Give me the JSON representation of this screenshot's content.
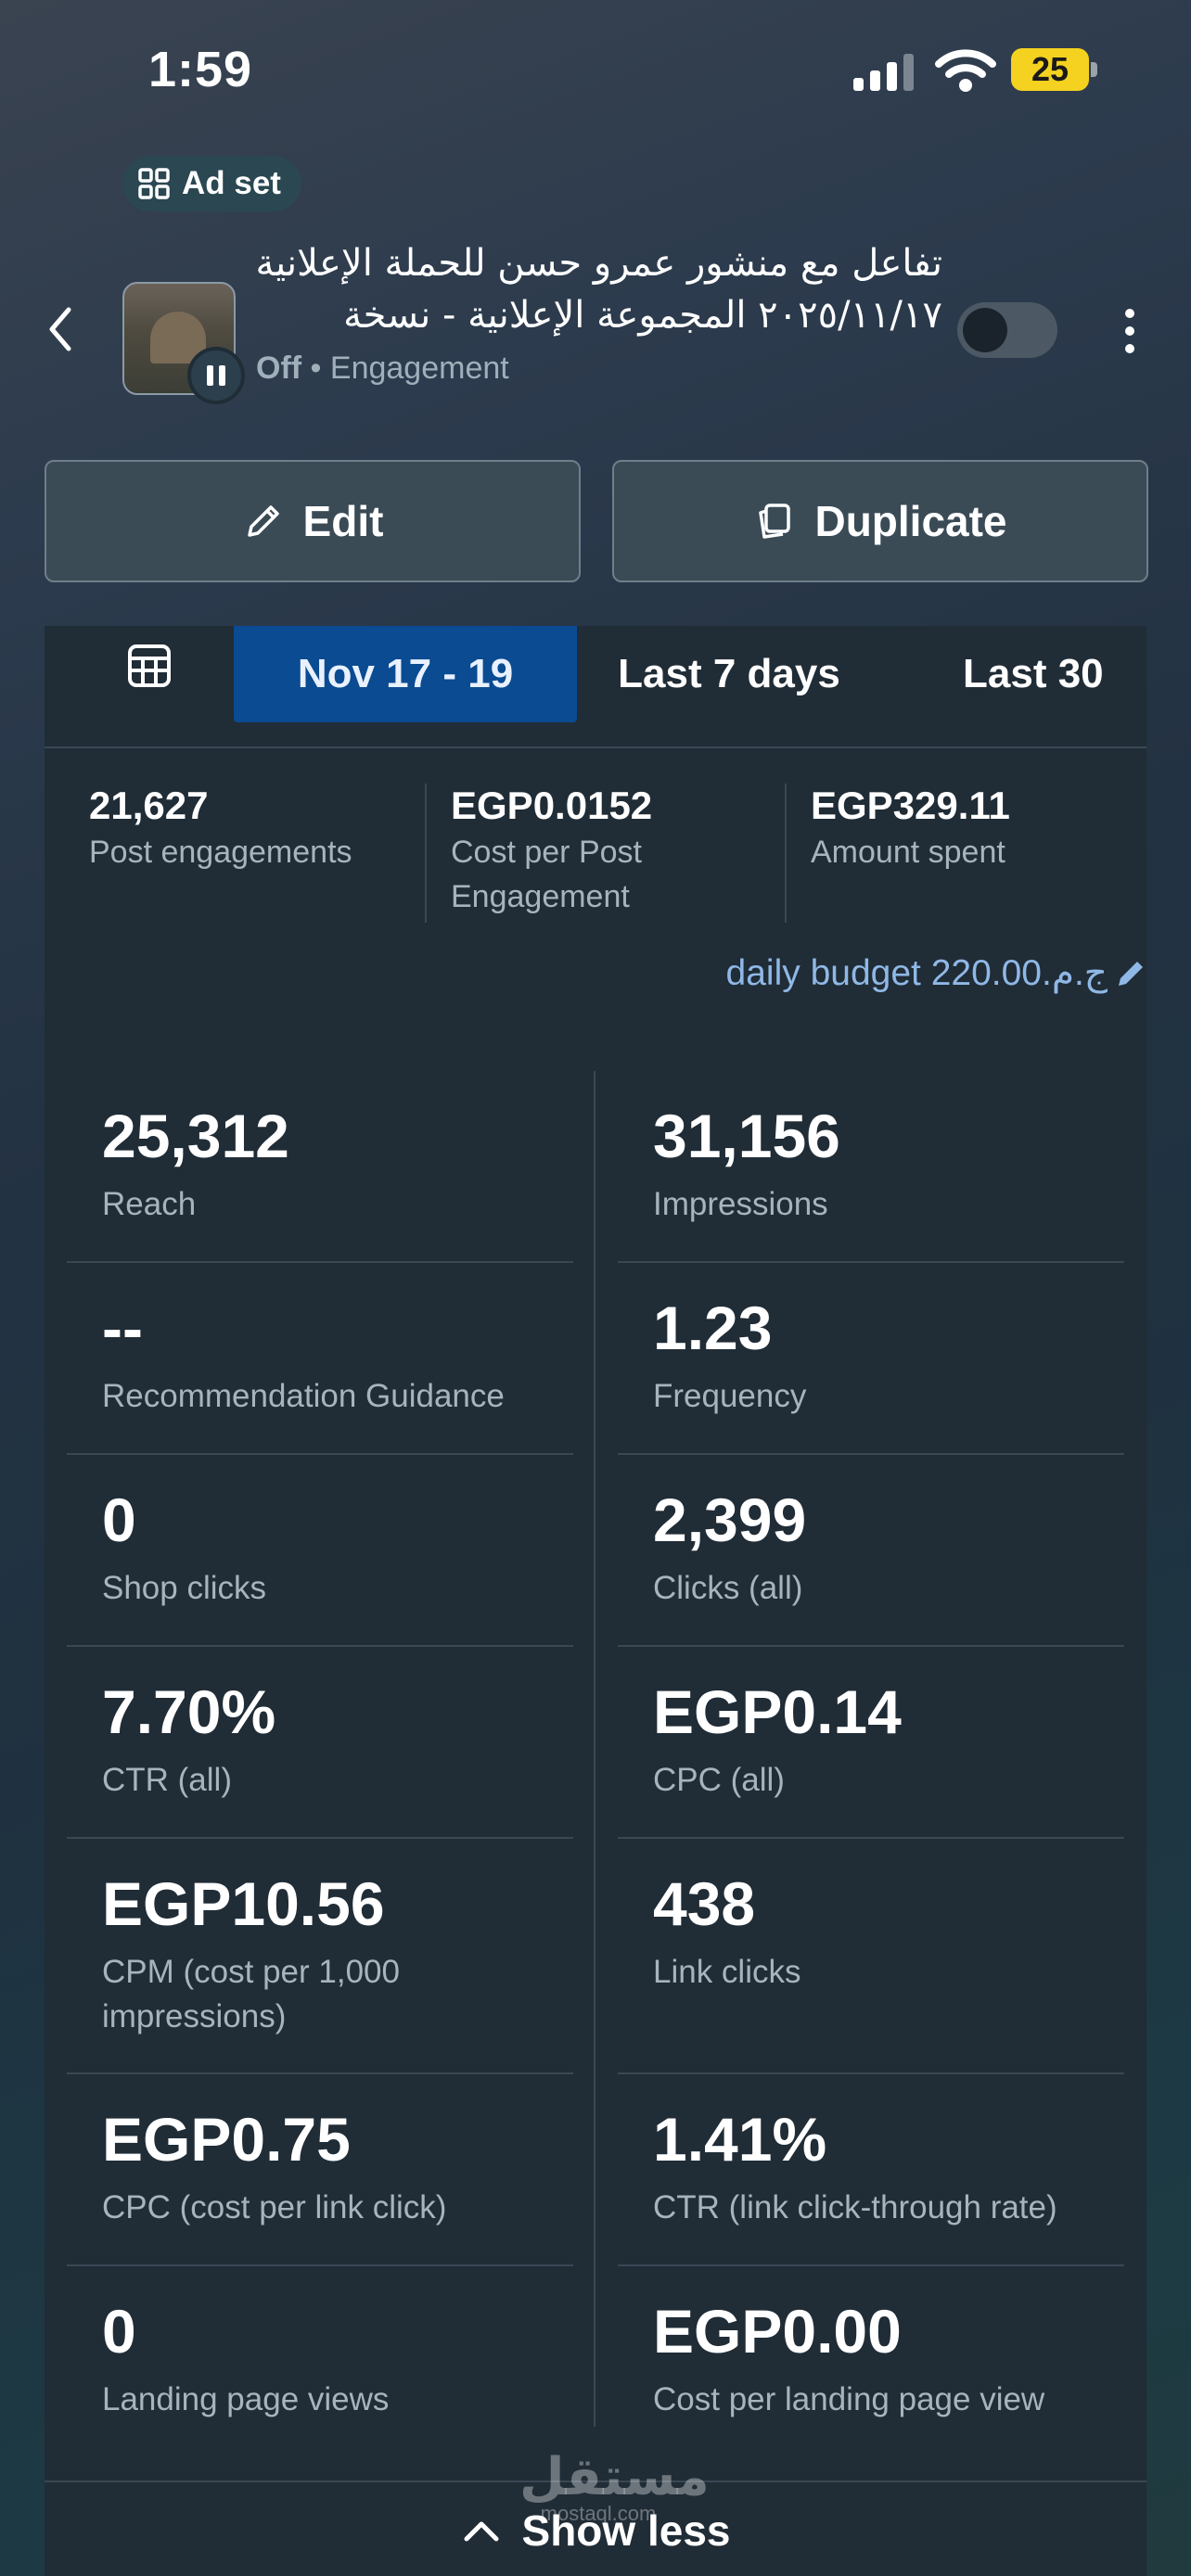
{
  "status_bar": {
    "time": "1:59",
    "battery": "25",
    "battery_color": "#f4d21f"
  },
  "header": {
    "badge_label": "Ad set",
    "title_line1": "تفاعل مع منشور  عمرو حسن للحملة الإعلانية",
    "title_line2": "٢٠٢٥/١١/١٧ المجموعة الإعلانية - نسخة",
    "status": "Off",
    "separator": "•",
    "objective": "Engagement",
    "toggle_on": false
  },
  "actions": {
    "edit_label": "Edit",
    "duplicate_label": "Duplicate"
  },
  "tabs": [
    {
      "label": "Nov 17 - 19",
      "active": true
    },
    {
      "label": "Last 7 days",
      "active": false
    },
    {
      "label": "Last 30",
      "active": false
    }
  ],
  "summary": [
    {
      "value": "21,627",
      "label": "Post engagements"
    },
    {
      "value": "EGP0.0152",
      "label": "Cost per Post Engagement"
    },
    {
      "value": "EGP329.11",
      "label": "Amount spent"
    }
  ],
  "budget_text": "daily budget 220.00.ج.م",
  "metrics_left": [
    {
      "value": "25,312",
      "label": "Reach"
    },
    {
      "value": "--",
      "label": "Recommendation Guidance"
    },
    {
      "value": "0",
      "label": "Shop clicks"
    },
    {
      "value": "7.70%",
      "label": "CTR (all)"
    },
    {
      "value": "EGP10.56",
      "label": "CPM (cost per 1,000 impressions)"
    },
    {
      "value": "EGP0.75",
      "label": "CPC (cost per link click)"
    },
    {
      "value": "0",
      "label": "Landing page views"
    }
  ],
  "metrics_right": [
    {
      "value": "31,156",
      "label": "Impressions"
    },
    {
      "value": "1.23",
      "label": "Frequency"
    },
    {
      "value": "2,399",
      "label": "Clicks (all)"
    },
    {
      "value": "EGP0.14",
      "label": "CPC (all)"
    },
    {
      "value": "438",
      "label": "Link clicks"
    },
    {
      "value": "1.41%",
      "label": "CTR (link click-through rate)"
    },
    {
      "value": "EGP0.00",
      "label": "Cost per landing page view"
    }
  ],
  "show_less_label": "Show less",
  "watermark": {
    "arabic": "مستقل",
    "latin": "mostaql.com"
  },
  "colors": {
    "active_tab": "#0a4b92",
    "link": "#8fb8e6",
    "card": "#202c36"
  }
}
